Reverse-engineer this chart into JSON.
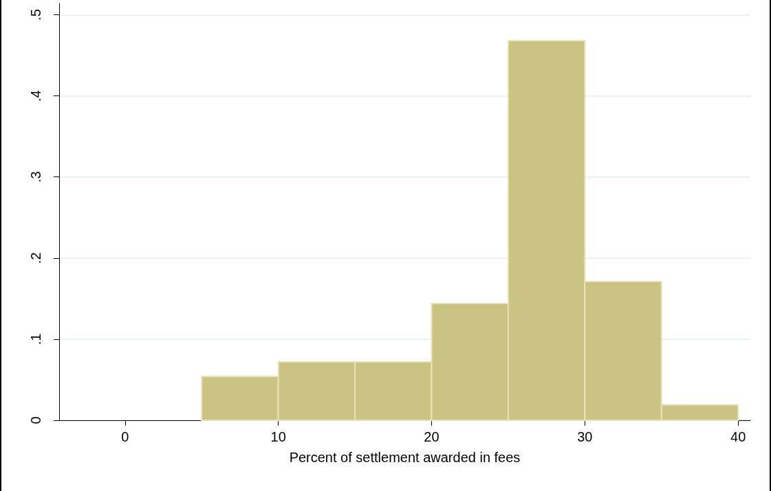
{
  "chart_data": {
    "type": "histogram",
    "xlabel": "Percent of settlement awarded in fees",
    "bins": [
      5,
      10,
      15,
      20,
      25,
      30,
      35,
      40
    ],
    "values": [
      0.054,
      0.072,
      0.072,
      0.144,
      0.468,
      0.171,
      0.019
    ],
    "color": "#cbc382",
    "xlim": [
      -4.3,
      40.8
    ],
    "xticks": [
      0,
      10,
      20,
      30,
      40
    ],
    "ylim": [
      0,
      0.514
    ],
    "yticks": [
      0,
      {
        "value": 0.1,
        "label": ".1"
      },
      {
        "value": 0.2,
        "label": ".2"
      },
      {
        "value": 0.3,
        "label": ".3"
      },
      {
        "value": 0.4,
        "label": ".4"
      },
      {
        "value": 0.5,
        "label": ".5"
      }
    ],
    "grid": "y"
  }
}
